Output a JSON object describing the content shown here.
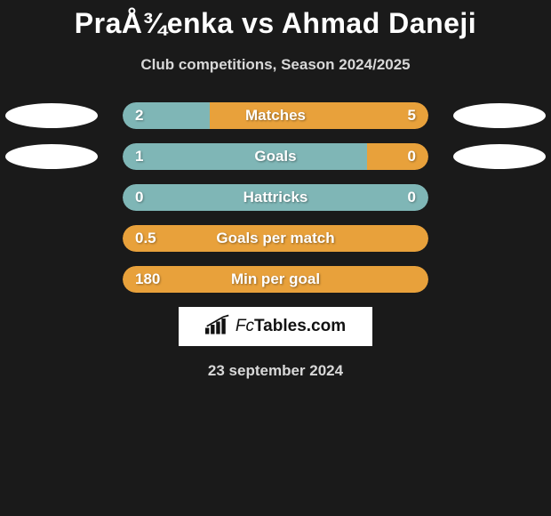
{
  "header": {
    "title": "PraÅ¾enka vs Ahmad Daneji",
    "subtitle": "Club competitions, Season 2024/2025"
  },
  "colors": {
    "teal": "#7fb6b6",
    "orange": "#e8a13b",
    "background": "#1a1a1a",
    "ellipse": "#ffffff",
    "logo_bg": "#ffffff"
  },
  "stats": [
    {
      "label": "Matches",
      "left_value": "2",
      "right_value": "5",
      "left_pct": 28.6,
      "right_pct": 71.4,
      "left_color": "#7fb6b6",
      "right_color": "#e8a13b",
      "show_ellipses": true,
      "full_left": false
    },
    {
      "label": "Goals",
      "left_value": "1",
      "right_value": "0",
      "left_pct": 80,
      "right_pct": 20,
      "left_color": "#7fb6b6",
      "right_color": "#e8a13b",
      "show_ellipses": true,
      "full_left": false
    },
    {
      "label": "Hattricks",
      "left_value": "0",
      "right_value": "0",
      "left_pct": 100,
      "right_pct": 0,
      "left_color": "#7fb6b6",
      "right_color": "#e8a13b",
      "show_ellipses": false,
      "full_left": true
    },
    {
      "label": "Goals per match",
      "left_value": "0.5",
      "right_value": "",
      "left_pct": 100,
      "right_pct": 0,
      "left_color": "#e8a13b",
      "right_color": "#e8a13b",
      "show_ellipses": false,
      "full_left": true
    },
    {
      "label": "Min per goal",
      "left_value": "180",
      "right_value": "",
      "left_pct": 100,
      "right_pct": 0,
      "left_color": "#e8a13b",
      "right_color": "#e8a13b",
      "show_ellipses": false,
      "full_left": true
    }
  ],
  "footer": {
    "logo_label": "FcTables.com",
    "date": "23 september 2024"
  }
}
